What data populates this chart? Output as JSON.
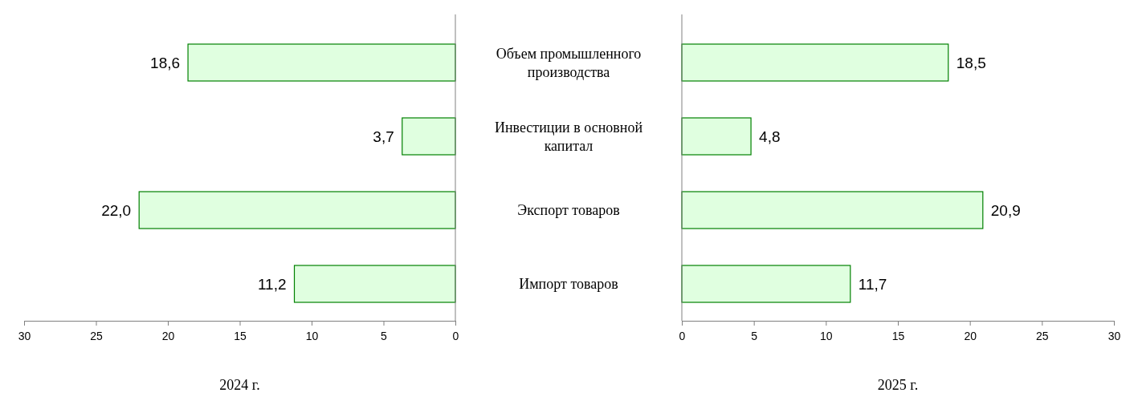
{
  "chart_data": [
    {
      "type": "bar",
      "orientation": "horizontal",
      "categories": [
        "Объем промышленного производства",
        "Инвестиции в основной капитал",
        "Экспорт товаров",
        "Импорт товаров"
      ],
      "values": [
        18.6,
        3.7,
        22.0,
        11.2
      ],
      "value_labels": [
        "18,6",
        "3,7",
        "22,0",
        "11,2"
      ],
      "color": "#e0ffe0",
      "xlim": [
        30,
        0
      ],
      "xticks": [
        30,
        25,
        20,
        15,
        10,
        5,
        0
      ],
      "xlabel": "2024 г.",
      "grid": false
    },
    {
      "type": "bar",
      "orientation": "horizontal",
      "categories": [
        null,
        null,
        null,
        null
      ],
      "values": [
        18.5,
        4.8,
        20.9,
        11.7
      ],
      "value_labels": [
        "18,5",
        "4,8",
        "20,9",
        "11,7"
      ],
      "color": "#e0ffe0",
      "xlim": [
        0,
        30
      ],
      "xticks": [
        0,
        5,
        10,
        15,
        20,
        25,
        30
      ],
      "xlabel": "2025 г.",
      "tick_labels": "x",
      "grid": false
    }
  ]
}
